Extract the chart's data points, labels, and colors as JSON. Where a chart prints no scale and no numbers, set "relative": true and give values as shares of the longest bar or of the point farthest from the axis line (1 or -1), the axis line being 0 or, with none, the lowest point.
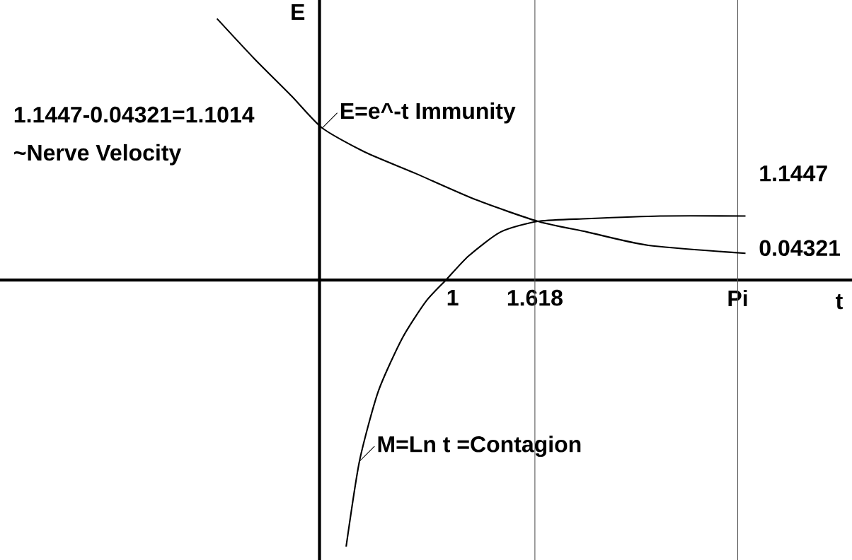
{
  "chart_data": {
    "type": "line",
    "relative": true,
    "xlabel": "t",
    "ylabel": "E",
    "xlim": [
      -2.4,
      4.0
    ],
    "xticks": [
      1,
      1.618,
      {
        "value": 3.1416,
        "label": "Pi"
      }
    ],
    "series": [
      {
        "color": "#000000",
        "x": [
          -0.77,
          -0.49,
          -0.21,
          0.02,
          0.34,
          0.72,
          1.18,
          1.64,
          2.01,
          2.47,
          3.2
        ],
        "values": [
          0.98,
          0.83,
          0.69,
          0.57,
          0.48,
          0.4,
          0.3,
          0.22,
          0.18,
          0.13,
          0.1
        ]
      },
      {
        "color": "#000000",
        "x": [
          0.2,
          0.3,
          0.44,
          0.62,
          0.8,
          0.95,
          1.12,
          1.36,
          1.64,
          2.01,
          2.56,
          3.2
        ],
        "values": [
          -1.0,
          -0.68,
          -0.42,
          -0.22,
          -0.08,
          0.0,
          0.09,
          0.18,
          0.22,
          0.23,
          0.24,
          0.24
        ]
      }
    ],
    "ref_lines": [
      {
        "axis": "x",
        "value": 1.618,
        "color": "#555555"
      },
      {
        "axis": "x",
        "value": 3.1416,
        "color": "#555555"
      }
    ],
    "annotations": [
      {
        "text": "E=e^-t   Immunity",
        "x": 0.02,
        "y": 0.57
      },
      {
        "text": "M=Ln t  =Contagion",
        "x": 0.3,
        "y": -0.68
      },
      "1.1447-0.04321=1.1014",
      "~Nerve Velocity",
      "1.1447",
      "0.04321"
    ]
  }
}
